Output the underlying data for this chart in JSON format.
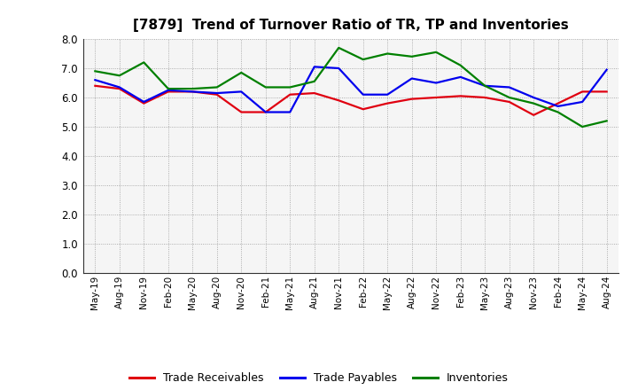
{
  "title": "[7879]  Trend of Turnover Ratio of TR, TP and Inventories",
  "x_labels": [
    "May-19",
    "Aug-19",
    "Nov-19",
    "Feb-20",
    "May-20",
    "Aug-20",
    "Nov-20",
    "Feb-21",
    "May-21",
    "Aug-21",
    "Nov-21",
    "Feb-22",
    "May-22",
    "Aug-22",
    "Nov-22",
    "Feb-23",
    "May-23",
    "Aug-23",
    "Nov-23",
    "Feb-24",
    "May-24",
    "Aug-24"
  ],
  "trade_receivables": [
    6.4,
    6.3,
    5.8,
    6.2,
    6.2,
    6.1,
    5.5,
    5.5,
    6.1,
    6.15,
    5.9,
    5.6,
    5.8,
    5.95,
    6.0,
    6.05,
    6.0,
    5.85,
    5.4,
    5.8,
    6.2,
    6.2
  ],
  "trade_payables": [
    6.6,
    6.35,
    5.85,
    6.25,
    6.2,
    6.15,
    6.2,
    5.5,
    5.5,
    7.05,
    7.0,
    6.1,
    6.1,
    6.65,
    6.5,
    6.7,
    6.4,
    6.35,
    6.0,
    5.7,
    5.85,
    6.95
  ],
  "inventories": [
    6.9,
    6.75,
    7.2,
    6.3,
    6.3,
    6.35,
    6.85,
    6.35,
    6.35,
    6.55,
    7.7,
    7.3,
    7.5,
    7.4,
    7.55,
    7.1,
    6.4,
    6.0,
    5.8,
    5.5,
    5.0,
    5.2
  ],
  "ylim": [
    0.0,
    8.0
  ],
  "yticks": [
    0.0,
    1.0,
    2.0,
    3.0,
    4.0,
    5.0,
    6.0,
    7.0,
    8.0
  ],
  "line_color_tr": "#e00010",
  "line_color_tp": "#0000ee",
  "line_color_inv": "#008000",
  "legend_labels": [
    "Trade Receivables",
    "Trade Payables",
    "Inventories"
  ],
  "background_color": "#ffffff",
  "plot_bg_color": "#f5f5f5",
  "grid_color": "#999999"
}
